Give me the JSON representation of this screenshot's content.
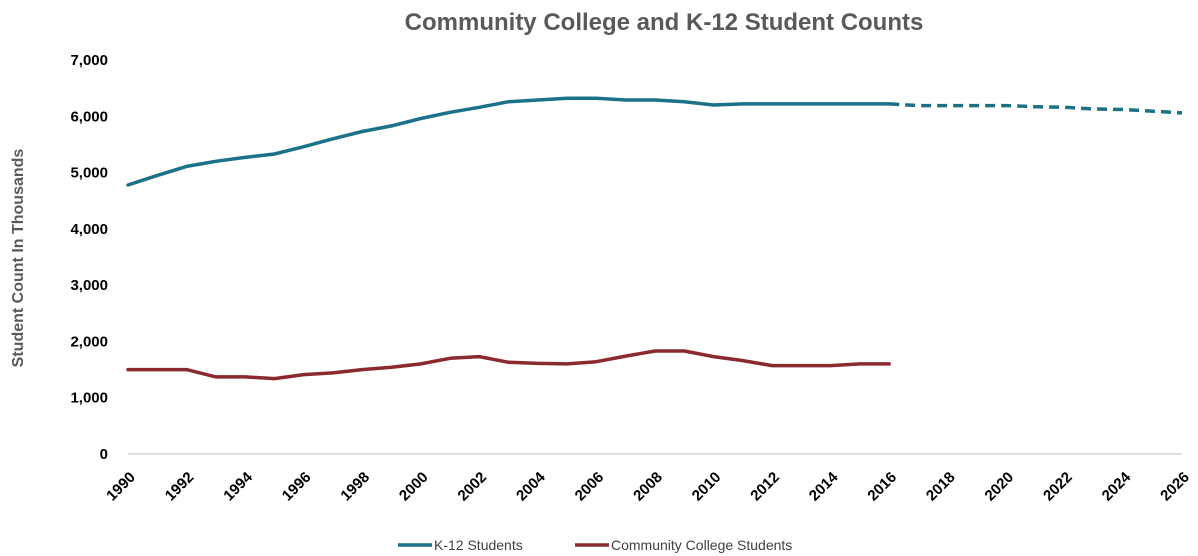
{
  "chart_data": {
    "type": "line",
    "title": "Community College and K-12 Student Counts",
    "xlabel": "",
    "ylabel": "Student Count In Thousands",
    "ylim": [
      0,
      7000
    ],
    "xlim": [
      1990,
      2026
    ],
    "yticks": [
      0,
      1000,
      2000,
      3000,
      4000,
      5000,
      6000,
      7000
    ],
    "ytick_labels": [
      "0",
      "1,000",
      "2,000",
      "3,000",
      "4,000",
      "5,000",
      "6,000",
      "7,000"
    ],
    "xticks": [
      "1990",
      "1992",
      "1994",
      "1996",
      "1998",
      "2000",
      "2002",
      "2004",
      "2006",
      "2008",
      "2010",
      "2012",
      "2014",
      "2016",
      "2018",
      "2020",
      "2022",
      "2024",
      "2026"
    ],
    "grid": "none",
    "legend_position": "bottom",
    "series": [
      {
        "name": "K-12 Students",
        "color": "#1B7189",
        "x": [
          1990,
          1991,
          1992,
          1993,
          1994,
          1995,
          1996,
          1997,
          1998,
          1999,
          2000,
          2001,
          2002,
          2003,
          2004,
          2005,
          2006,
          2007,
          2008,
          2009,
          2010,
          2011,
          2012,
          2013,
          2014,
          2015,
          2016
        ],
        "values": [
          4780,
          4950,
          5110,
          5200,
          5270,
          5330,
          5460,
          5600,
          5730,
          5830,
          5960,
          6070,
          6160,
          6260,
          6290,
          6320,
          6320,
          6290,
          6290,
          6260,
          6200,
          6220,
          6220,
          6220,
          6220,
          6220,
          6220
        ]
      },
      {
        "name": "",
        "color": "#1B7189",
        "dashed": true,
        "x": [
          2016,
          2017,
          2018,
          2019,
          2020,
          2021,
          2022,
          2023,
          2024,
          2025,
          2026
        ],
        "values": [
          6220,
          6190,
          6190,
          6190,
          6190,
          6170,
          6160,
          6130,
          6120,
          6090,
          6060
        ]
      },
      {
        "name": "Community College Students",
        "color": "#8B2A2E",
        "x": [
          1990,
          1991,
          1992,
          1993,
          1994,
          1995,
          1996,
          1997,
          1998,
          1999,
          2000,
          2001,
          2002,
          2003,
          2004,
          2005,
          2006,
          2007,
          2008,
          2009,
          2010,
          2011,
          2012,
          2013,
          2014,
          2015,
          2016
        ],
        "values": [
          1500,
          1500,
          1500,
          1370,
          1370,
          1340,
          1410,
          1440,
          1500,
          1540,
          1600,
          1700,
          1730,
          1630,
          1610,
          1600,
          1640,
          1740,
          1830,
          1830,
          1730,
          1660,
          1570,
          1570,
          1570,
          1600,
          1600
        ]
      }
    ]
  }
}
